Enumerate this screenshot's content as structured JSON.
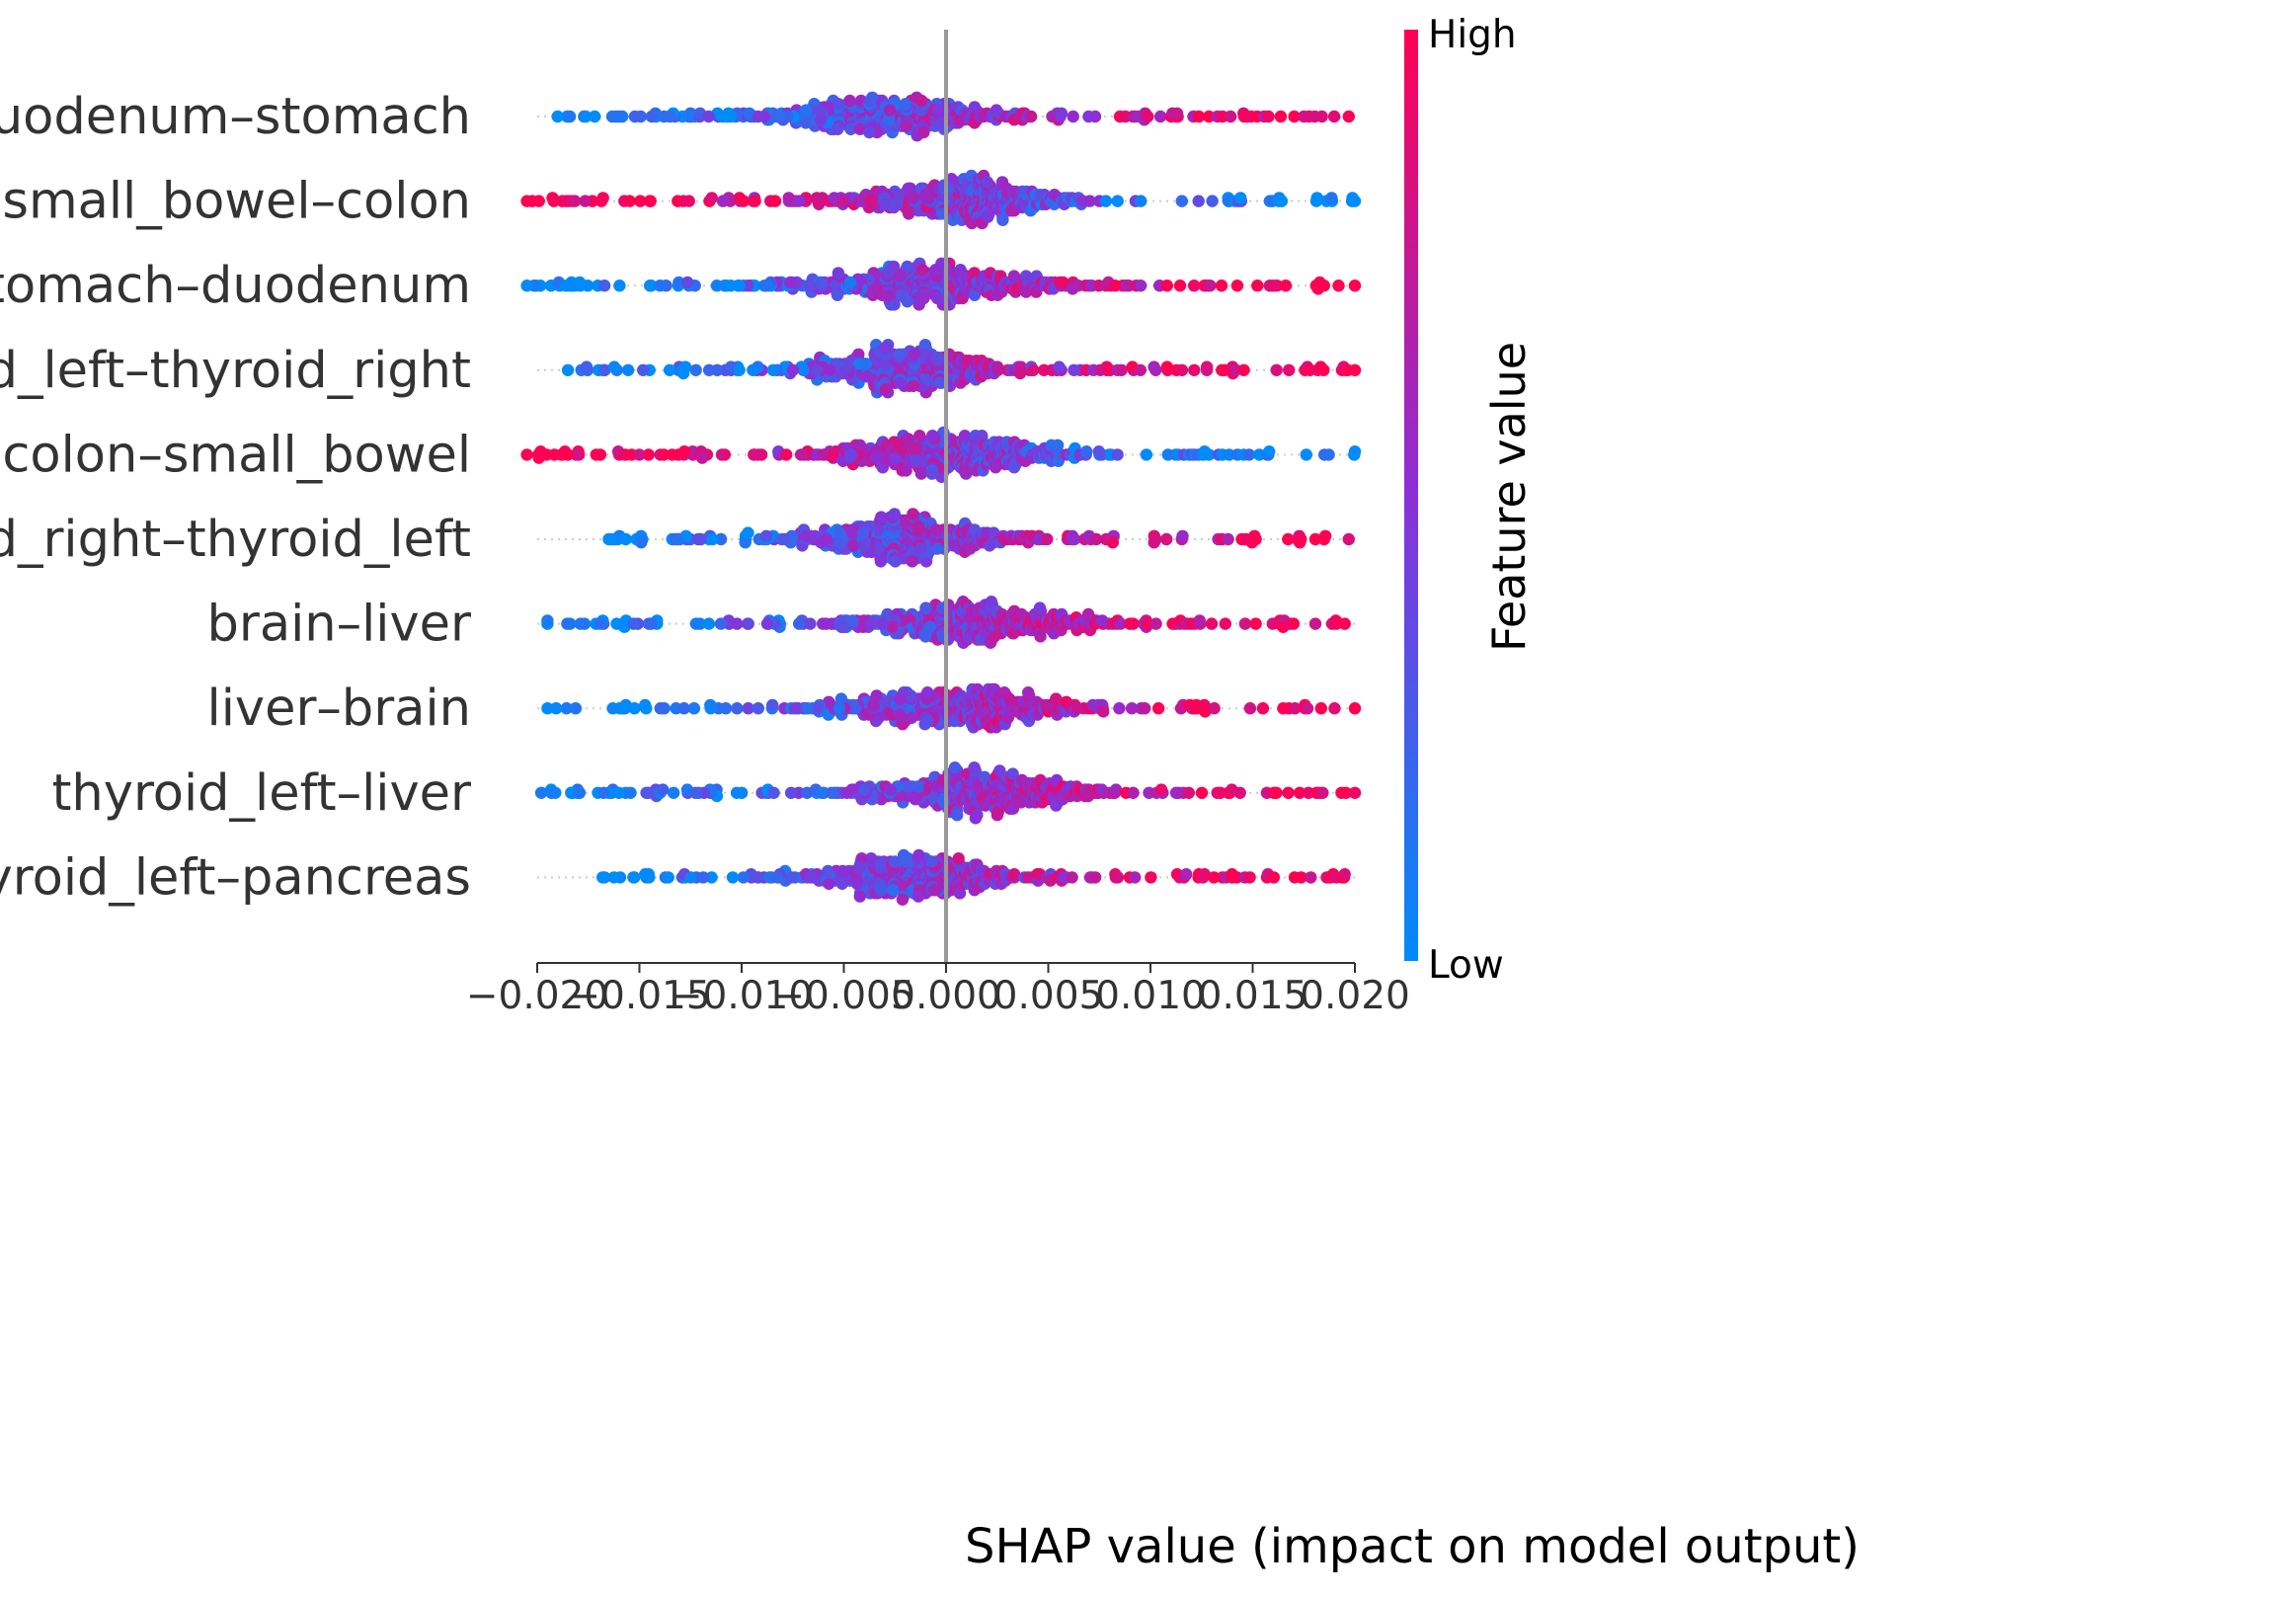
{
  "chart_data": {
    "type": "scatter",
    "subtype": "shap-beeswarm",
    "title": "",
    "xlabel": "SHAP value (impact on model output)",
    "xlim": [
      -0.02,
      0.02
    ],
    "xticks": [
      -0.02,
      -0.015,
      -0.01,
      -0.005,
      0.0,
      0.005,
      0.01,
      0.015,
      0.02
    ],
    "xtick_labels": [
      "−0.020",
      "−0.015",
      "−0.010",
      "−0.005",
      "0.000",
      "0.005",
      "0.010",
      "0.015",
      "0.020"
    ],
    "features": [
      {
        "name": "duodenum–stomach",
        "min": -0.019,
        "max": 0.0197,
        "peak": -0.003,
        "spread": 0.0062,
        "direction": 1,
        "density_skew": 0.0
      },
      {
        "name": "small_bowel–colon",
        "min": -0.0205,
        "max": 0.02,
        "peak": 0.0005,
        "spread": 0.0055,
        "direction": -1,
        "density_skew": 0.0
      },
      {
        "name": "stomach–duodenum",
        "min": -0.0205,
        "max": 0.02,
        "peak": -0.001,
        "spread": 0.0065,
        "direction": 1,
        "density_skew": 0.0
      },
      {
        "name": "thyroid_left–thyroid_right",
        "min": -0.0185,
        "max": 0.02,
        "peak": -0.002,
        "spread": 0.0048,
        "direction": 1,
        "density_skew": 0.0
      },
      {
        "name": "colon–small_bowel",
        "min": -0.0205,
        "max": 0.02,
        "peak": 0.0,
        "spread": 0.0055,
        "direction": -1,
        "density_skew": 0.0
      },
      {
        "name": "thyroid_right–thyroid_left",
        "min": -0.0165,
        "max": 0.0197,
        "peak": -0.002,
        "spread": 0.005,
        "direction": 1,
        "density_skew": 0.0
      },
      {
        "name": "brain–liver",
        "min": -0.0195,
        "max": 0.0195,
        "peak": 0.0015,
        "spread": 0.0055,
        "direction": 1,
        "density_skew": 0.0
      },
      {
        "name": "liver–brain",
        "min": -0.0195,
        "max": 0.02,
        "peak": 0.0005,
        "spread": 0.0058,
        "direction": 1,
        "density_skew": 0.0
      },
      {
        "name": "thyroid_left–liver",
        "min": -0.0198,
        "max": 0.02,
        "peak": 0.0015,
        "spread": 0.0058,
        "direction": 1,
        "density_skew": 0.0
      },
      {
        "name": "thyroid_left–pancreas",
        "min": -0.0168,
        "max": 0.0195,
        "peak": -0.0015,
        "spread": 0.0048,
        "direction": 1,
        "density_skew": 0.0
      }
    ],
    "colorbar": {
      "title": "Feature value",
      "high_label": "High",
      "low_label": "Low",
      "high_color": "#ff0052",
      "mid_color": "#8a30d8",
      "low_color": "#008bfb"
    },
    "zero_line_color": "#999999",
    "legend_position": "right"
  }
}
